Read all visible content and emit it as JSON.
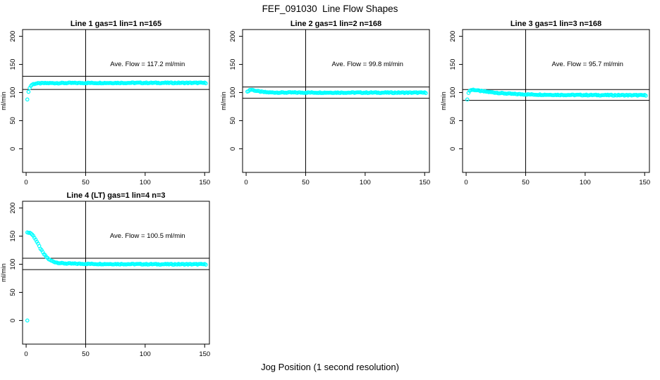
{
  "page": {
    "title": "FEF_091030  Line Flow Shapes",
    "xlabel": "Jog Position (1 second resolution)"
  },
  "colors": {
    "background": "#ffffff",
    "axis": "#000000",
    "text": "#000000",
    "point": "#00ffff"
  },
  "chart_data": [
    {
      "type": "scatter",
      "panel": "Line 1",
      "title": "Line 1 gas=1 lin=1 n=165",
      "ylabel": "ml/min",
      "n": 165,
      "ave_flow": 117.2,
      "ave_flow_label": "Ave. Flow =  117.2  ml/min",
      "xlim": [
        -3,
        154
      ],
      "ylim": [
        -42,
        212
      ],
      "x_ticks": [
        0,
        50,
        100,
        150
      ],
      "y_ticks": [
        0,
        50,
        100,
        150,
        200
      ],
      "vline_x": 50,
      "hlines": [
        128.9,
        105.5
      ],
      "x_range": [
        1,
        151
      ],
      "grid": false,
      "legend": "none",
      "marker": "open-circle",
      "points": [
        [
          1,
          87
        ],
        [
          2,
          102
        ],
        [
          3,
          108
        ],
        [
          4,
          112
        ],
        [
          5,
          114
        ],
        [
          6,
          115
        ],
        [
          8,
          116
        ],
        [
          12,
          116.5
        ],
        [
          20,
          116.8
        ],
        [
          40,
          117
        ],
        [
          80,
          117.2
        ],
        [
          120,
          117.2
        ],
        [
          151,
          117.2
        ]
      ],
      "extra_points": []
    },
    {
      "type": "scatter",
      "panel": "Line 2",
      "title": "Line 2 gas=1 lin=2 n=168",
      "ylabel": "ml/min",
      "n": 168,
      "ave_flow": 99.8,
      "ave_flow_label": "Ave. Flow =  99.8  ml/min",
      "xlim": [
        -3,
        154
      ],
      "ylim": [
        -42,
        212
      ],
      "x_ticks": [
        0,
        50,
        100,
        150
      ],
      "y_ticks": [
        0,
        50,
        100,
        150,
        200
      ],
      "vline_x": 50,
      "hlines": [
        109.8,
        89.8
      ],
      "x_range": [
        1,
        151
      ],
      "grid": false,
      "legend": "none",
      "marker": "open-circle",
      "points": [
        [
          1,
          101
        ],
        [
          2,
          103
        ],
        [
          3,
          104.5
        ],
        [
          4,
          105
        ],
        [
          5,
          105
        ],
        [
          6,
          104.3
        ],
        [
          8,
          103.2
        ],
        [
          10,
          102.3
        ],
        [
          13,
          101.3
        ],
        [
          16,
          100.6
        ],
        [
          20,
          100.2
        ],
        [
          30,
          100
        ],
        [
          151,
          99.8
        ]
      ],
      "extra_points": []
    },
    {
      "type": "scatter",
      "panel": "Line 3",
      "title": "Line 3 gas=1 lin=3 n=168",
      "ylabel": "ml/min",
      "n": 168,
      "ave_flow": 95.7,
      "ave_flow_label": "Ave. Flow =  95.7  ml/min",
      "xlim": [
        -3,
        154
      ],
      "ylim": [
        -42,
        212
      ],
      "x_ticks": [
        0,
        50,
        100,
        150
      ],
      "y_ticks": [
        0,
        50,
        100,
        150,
        200
      ],
      "vline_x": 50,
      "hlines": [
        105.3,
        86.1
      ],
      "x_range": [
        1,
        151
      ],
      "grid": false,
      "legend": "none",
      "marker": "open-circle",
      "points": [
        [
          1,
          87
        ],
        [
          2,
          100
        ],
        [
          3,
          103
        ],
        [
          4,
          104.5
        ],
        [
          6,
          105
        ],
        [
          8,
          104.3
        ],
        [
          10,
          103.4
        ],
        [
          15,
          102
        ],
        [
          20,
          100.8
        ],
        [
          25,
          99.8
        ],
        [
          30,
          98.8
        ],
        [
          40,
          97.4
        ],
        [
          50,
          96.8
        ],
        [
          60,
          96.3
        ],
        [
          80,
          95.8
        ],
        [
          100,
          95.6
        ],
        [
          120,
          95.4
        ],
        [
          151,
          95.2
        ]
      ],
      "extra_points": []
    },
    {
      "type": "scatter",
      "panel": "Line 4",
      "title": "Line 4 (LT) gas=1 lin=4 n=3",
      "ylabel": "ml/min",
      "n": 3,
      "ave_flow": 100.5,
      "ave_flow_label": "Ave. Flow =  100.5  ml/min",
      "xlim": [
        -3,
        154
      ],
      "ylim": [
        -42,
        212
      ],
      "x_ticks": [
        0,
        50,
        100,
        150
      ],
      "y_ticks": [
        0,
        50,
        100,
        150,
        200
      ],
      "vline_x": 50,
      "hlines": [
        110.6,
        90.5
      ],
      "x_range": [
        1,
        151
      ],
      "grid": false,
      "legend": "none",
      "marker": "open-circle",
      "points": [
        [
          1,
          156
        ],
        [
          2,
          156.5
        ],
        [
          3,
          156
        ],
        [
          4,
          155
        ],
        [
          5,
          153
        ],
        [
          6,
          150.5
        ],
        [
          7,
          147.5
        ],
        [
          8,
          144
        ],
        [
          9,
          140
        ],
        [
          10,
          136
        ],
        [
          11,
          132
        ],
        [
          12,
          128
        ],
        [
          13,
          124.5
        ],
        [
          14,
          121
        ],
        [
          15,
          118
        ],
        [
          16,
          115.5
        ],
        [
          17,
          113
        ],
        [
          18,
          111
        ],
        [
          19,
          109
        ],
        [
          20,
          107.5
        ],
        [
          22,
          105.5
        ],
        [
          24,
          104
        ],
        [
          26,
          103
        ],
        [
          28,
          102.3
        ],
        [
          30,
          101.8
        ],
        [
          35,
          101.2
        ],
        [
          40,
          101
        ],
        [
          50,
          100.7
        ],
        [
          60,
          100.5
        ],
        [
          80,
          100.3
        ],
        [
          100,
          100.1
        ],
        [
          120,
          100
        ],
        [
          151,
          100
        ]
      ],
      "extra_points": [
        [
          1,
          0
        ]
      ]
    }
  ]
}
